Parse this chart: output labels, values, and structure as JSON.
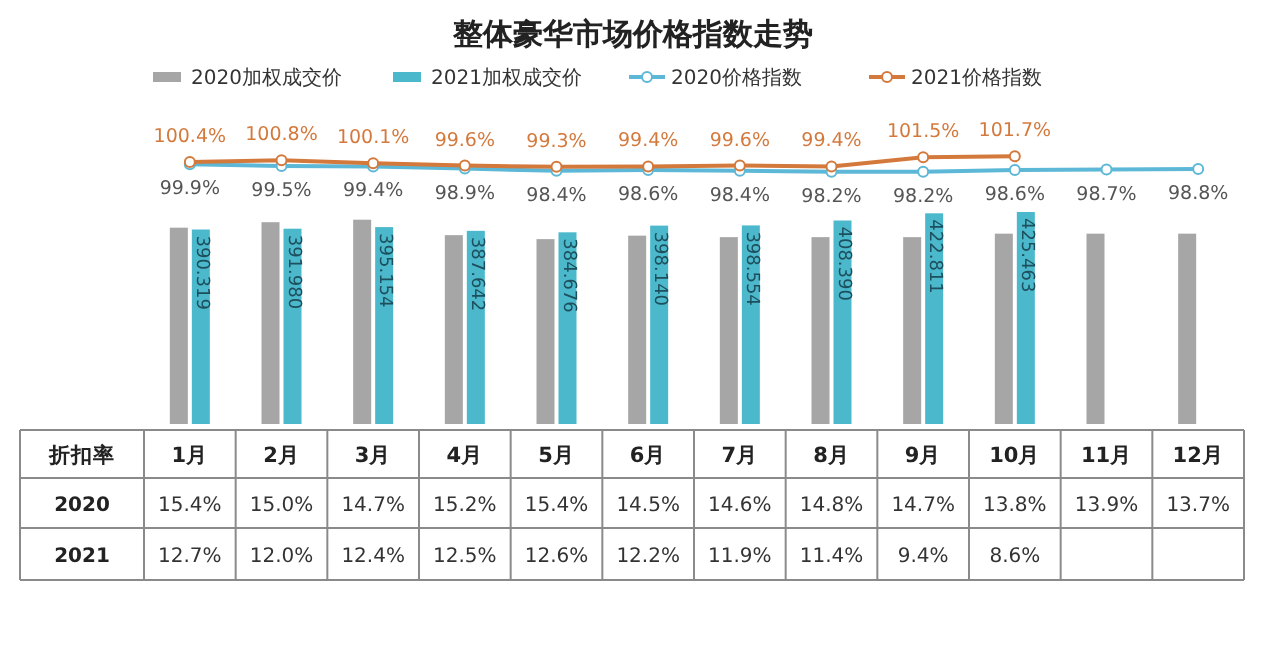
{
  "chart_data": [
    {
      "type": "bar",
      "categories": [
        "1月",
        "2月",
        "3月",
        "4月",
        "5月",
        "6月",
        "7月",
        "8月",
        "9月",
        "10月",
        "11月",
        "12月"
      ],
      "legend": "top",
      "series": [
        {
          "name": "2020加权成交价",
          "color": "#a6a6a6",
          "values": [
            394,
            405,
            410,
            379,
            371,
            378,
            375,
            375,
            375,
            382,
            382,
            382
          ]
        },
        {
          "name": "2021加权成交价",
          "color": "#4bb8cc",
          "values": [
            390.319,
            391.98,
            395.154,
            387.642,
            384.676,
            398.14,
            398.554,
            408.39,
            422.811,
            425.463,
            null,
            null
          ],
          "value_labels": [
            "390.319",
            "391.980",
            "395.154",
            "387.642",
            "384.676",
            "398.140",
            "398.554",
            "408.390",
            "422.811",
            "425.463",
            null,
            null
          ]
        }
      ]
    },
    {
      "type": "line",
      "title": "整体豪华市场价格指数走势",
      "categories": [
        null,
        null,
        null,
        null,
        null,
        null,
        null,
        null,
        null,
        null,
        null,
        null
      ],
      "legend": "top",
      "marker": "circle",
      "series": [
        {
          "name": "2020价格指数",
          "color": "#5cb8d6",
          "values": [
            99.9,
            99.5,
            99.4,
            98.9,
            98.4,
            98.6,
            98.4,
            98.2,
            98.2,
            98.6,
            98.7,
            98.8
          ],
          "value_labels": [
            "99.9%",
            "99.5%",
            "99.4%",
            "98.9%",
            "98.4%",
            "98.6%",
            "98.4%",
            "98.2%",
            "98.2%",
            "98.6%",
            "98.7%",
            "98.8%"
          ]
        },
        {
          "name": "2021价格指数",
          "color": "#d4793c",
          "values": [
            100.4,
            100.8,
            100.1,
            99.6,
            99.3,
            99.4,
            99.6,
            99.4,
            101.5,
            101.7,
            null,
            null
          ],
          "value_labels": [
            "100.4%",
            "100.8%",
            "100.1%",
            "99.6%",
            "99.3%",
            "99.4%",
            "99.6%",
            "99.4%",
            "101.5%",
            "101.7%",
            null,
            null
          ]
        }
      ]
    },
    {
      "type": "heatmap",
      "title": "折扣率",
      "categories": [
        null,
        null,
        null,
        null,
        null,
        null,
        null,
        null,
        null,
        null,
        null,
        null
      ],
      "y_categories": [
        "2020",
        "2021"
      ],
      "cells": [
        [
          15.4,
          15.0,
          14.7,
          15.2,
          15.4,
          14.5,
          14.6,
          14.8,
          14.7,
          13.8,
          13.9,
          13.7
        ],
        [
          12.7,
          12.0,
          12.4,
          12.5,
          12.6,
          12.2,
          11.9,
          11.4,
          9.4,
          8.6,
          null,
          null
        ]
      ],
      "cell_labels": [
        [
          "15.4%",
          "15.0%",
          "14.7%",
          "15.2%",
          "15.4%",
          "14.5%",
          "14.6%",
          "14.8%",
          "14.7%",
          "13.8%",
          "13.9%",
          "13.7%"
        ],
        [
          "12.7%",
          "12.0%",
          "12.4%",
          "12.5%",
          "12.6%",
          "12.2%",
          "11.9%",
          "11.4%",
          "9.4%",
          "8.6%",
          null,
          null
        ]
      ]
    }
  ]
}
